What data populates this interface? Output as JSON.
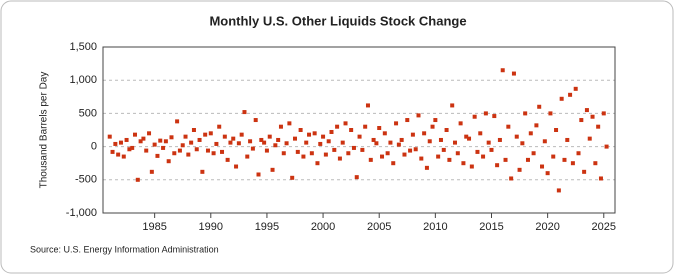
{
  "chart_data": {
    "type": "scatter",
    "title": "Monthly U.S. Other Liquids Stock Change",
    "y_label": "Thousand Barrels per Day",
    "source": "Source: U.S. Energy Information Administration",
    "color": "#cc3311",
    "grid": true,
    "xlim": [
      1980.4,
      2026
    ],
    "xticks": [
      1985,
      1990,
      1995,
      2000,
      2005,
      2010,
      2015,
      2020,
      2025
    ],
    "ylim": [
      -1000,
      1500
    ],
    "yticks": [
      {
        "value": -1000,
        "label": "-1,000"
      },
      -500,
      0,
      500,
      {
        "value": 1000,
        "label": "1,000"
      },
      {
        "value": 1500,
        "label": "1,500"
      }
    ],
    "x": [
      1981,
      1981.25,
      1981.5,
      1981.75,
      1982,
      1982.25,
      1982.5,
      1982.75,
      1983,
      1983.25,
      1983.5,
      1983.75,
      1984,
      1984.25,
      1984.5,
      1984.75,
      1985,
      1985.25,
      1985.5,
      1985.75,
      1986,
      1986.25,
      1986.5,
      1986.75,
      1987,
      1987.25,
      1987.5,
      1987.75,
      1988,
      1988.25,
      1988.5,
      1988.75,
      1989,
      1989.25,
      1989.5,
      1989.75,
      1990,
      1990.25,
      1990.5,
      1990.75,
      1991,
      1991.25,
      1991.5,
      1991.75,
      1992,
      1992.25,
      1992.5,
      1992.75,
      1993,
      1993.25,
      1993.5,
      1993.75,
      1994,
      1994.25,
      1994.5,
      1994.75,
      1995,
      1995.25,
      1995.5,
      1995.75,
      1996,
      1996.25,
      1996.5,
      1996.75,
      1997,
      1997.25,
      1997.5,
      1997.75,
      1998,
      1998.25,
      1998.5,
      1998.75,
      1999,
      1999.25,
      1999.5,
      1999.75,
      2000,
      2000.25,
      2000.5,
      2000.75,
      2001,
      2001.25,
      2001.5,
      2001.75,
      2002,
      2002.25,
      2002.5,
      2002.75,
      2003,
      2003.25,
      2003.5,
      2003.75,
      2004,
      2004.25,
      2004.5,
      2004.75,
      2005,
      2005.25,
      2005.5,
      2005.75,
      2006,
      2006.25,
      2006.5,
      2006.75,
      2007,
      2007.25,
      2007.5,
      2007.75,
      2008,
      2008.25,
      2008.5,
      2008.75,
      2009,
      2009.25,
      2009.5,
      2009.75,
      2010,
      2010.25,
      2010.5,
      2010.75,
      2011,
      2011.25,
      2011.5,
      2011.75,
      2012,
      2012.25,
      2012.5,
      2012.75,
      2013,
      2013.25,
      2013.5,
      2013.75,
      2014,
      2014.25,
      2014.5,
      2014.75,
      2015,
      2015.25,
      2015.5,
      2015.75,
      2016,
      2016.25,
      2016.5,
      2016.75,
      2017,
      2017.25,
      2017.5,
      2017.75,
      2018,
      2018.25,
      2018.5,
      2018.75,
      2019,
      2019.25,
      2019.5,
      2019.75,
      2020,
      2020.25,
      2020.5,
      2020.75,
      2021,
      2021.25,
      2021.5,
      2021.75,
      2022,
      2022.25,
      2022.5,
      2022.75,
      2023,
      2023.25,
      2023.5,
      2023.75,
      2024,
      2024.25,
      2024.5,
      2024.75,
      2025,
      2025.25
    ],
    "values": [
      150,
      -80,
      40,
      -120,
      60,
      -150,
      100,
      -40,
      -20,
      180,
      -500,
      80,
      120,
      -60,
      200,
      -380,
      30,
      -140,
      90,
      -20,
      80,
      -220,
      140,
      -100,
      380,
      -60,
      20,
      150,
      -120,
      60,
      250,
      -40,
      100,
      -380,
      180,
      -60,
      200,
      -100,
      40,
      300,
      -80,
      150,
      -200,
      60,
      120,
      -300,
      50,
      180,
      520,
      -150,
      80,
      -30,
      400,
      -420,
      100,
      60,
      -60,
      150,
      -350,
      20,
      100,
      300,
      -100,
      50,
      350,
      -470,
      120,
      -80,
      250,
      -150,
      60,
      180,
      -100,
      200,
      -250,
      40,
      150,
      -120,
      80,
      220,
      -50,
      300,
      -180,
      60,
      350,
      -100,
      250,
      -20,
      -460,
      150,
      -50,
      300,
      620,
      -200,
      100,
      50,
      280,
      -150,
      200,
      -100,
      60,
      -250,
      350,
      30,
      100,
      -120,
      400,
      -60,
      180,
      -40,
      470,
      -180,
      200,
      -320,
      80,
      300,
      400,
      -150,
      100,
      -50,
      250,
      -200,
      620,
      60,
      -100,
      350,
      -250,
      150,
      120,
      -300,
      450,
      -80,
      200,
      -150,
      500,
      60,
      -50,
      460,
      -280,
      100,
      1150,
      -200,
      300,
      -480,
      1100,
      150,
      -350,
      50,
      500,
      -200,
      200,
      -100,
      320,
      600,
      -300,
      80,
      -400,
      500,
      -150,
      250,
      -660,
      720,
      -200,
      100,
      780,
      -250,
      870,
      -100,
      400,
      -380,
      550,
      120,
      450,
      -250,
      300,
      -480,
      500,
      0
    ]
  }
}
